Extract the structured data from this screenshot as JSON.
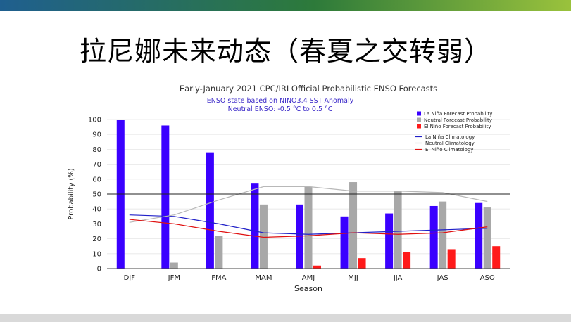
{
  "slide": {
    "title": "拉尼娜未来动态（春夏之交转弱）"
  },
  "chart_data": {
    "type": "bar",
    "title": "Early-January 2021 CPC/IRI Official Probabilistic ENSO Forecasts",
    "subtitle_lines": [
      "ENSO state based on NINO3.4 SST Anomaly",
      "Neutral ENSO: -0.5 °C to 0.5 °C"
    ],
    "xlabel": "Season",
    "ylabel": "Probability (%)",
    "ylim": [
      0,
      100
    ],
    "yticks": [
      0,
      10,
      20,
      30,
      40,
      50,
      60,
      70,
      80,
      90,
      100
    ],
    "reference_line": 50,
    "categories": [
      "DJF",
      "JFM",
      "FMA",
      "MAM",
      "AMJ",
      "MJJ",
      "JJA",
      "JAS",
      "ASO"
    ],
    "series": [
      {
        "name": "La Niña Forecast Probability",
        "color": "#3a00ff",
        "values": [
          100,
          96,
          78,
          57,
          43,
          35,
          37,
          42,
          44
        ]
      },
      {
        "name": "Neutral Forecast Probability",
        "color": "#a8a8a8",
        "values": [
          0,
          4,
          22,
          43,
          55,
          58,
          52,
          45,
          41
        ]
      },
      {
        "name": "El Niño Forecast Probability",
        "color": "#ff1a1a",
        "values": [
          0,
          0,
          0,
          0,
          2,
          7,
          11,
          13,
          15
        ]
      }
    ],
    "lines": [
      {
        "name": "La Niña Climatology",
        "color": "#2020c8",
        "values": [
          36,
          35,
          30,
          24,
          23,
          24,
          25,
          26,
          27
        ]
      },
      {
        "name": "Neutral Climatology",
        "color": "#b8b8b8",
        "values": [
          31,
          36,
          46,
          55,
          55,
          52,
          52,
          51,
          45
        ]
      },
      {
        "name": "El Niño Climatology",
        "color": "#e01010",
        "values": [
          33,
          30,
          25,
          21,
          22,
          24,
          23,
          24,
          28
        ]
      }
    ],
    "legend_position": "top-right"
  }
}
